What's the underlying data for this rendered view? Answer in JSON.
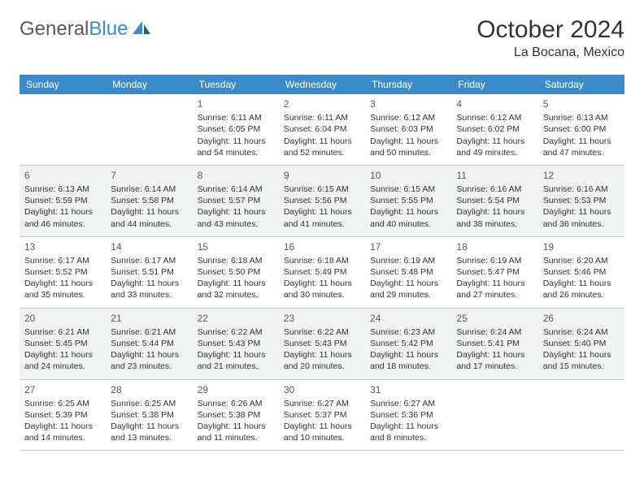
{
  "logo": {
    "word1": "General",
    "word2": "Blue"
  },
  "title": "October 2024",
  "location": "La Bocana, Mexico",
  "columns": [
    "Sunday",
    "Monday",
    "Tuesday",
    "Wednesday",
    "Thursday",
    "Friday",
    "Saturday"
  ],
  "header_bg": "#3b8bc9",
  "row_alt_bg": "#f1f2f2",
  "cells": [
    [
      null,
      null,
      {
        "day": "1",
        "sunrise": "Sunrise: 6:11 AM",
        "sunset": "Sunset: 6:05 PM",
        "daylight": "Daylight: 11 hours and 54 minutes."
      },
      {
        "day": "2",
        "sunrise": "Sunrise: 6:11 AM",
        "sunset": "Sunset: 6:04 PM",
        "daylight": "Daylight: 11 hours and 52 minutes."
      },
      {
        "day": "3",
        "sunrise": "Sunrise: 6:12 AM",
        "sunset": "Sunset: 6:03 PM",
        "daylight": "Daylight: 11 hours and 50 minutes."
      },
      {
        "day": "4",
        "sunrise": "Sunrise: 6:12 AM",
        "sunset": "Sunset: 6:02 PM",
        "daylight": "Daylight: 11 hours and 49 minutes."
      },
      {
        "day": "5",
        "sunrise": "Sunrise: 6:13 AM",
        "sunset": "Sunset: 6:00 PM",
        "daylight": "Daylight: 11 hours and 47 minutes."
      }
    ],
    [
      {
        "day": "6",
        "sunrise": "Sunrise: 6:13 AM",
        "sunset": "Sunset: 5:59 PM",
        "daylight": "Daylight: 11 hours and 46 minutes."
      },
      {
        "day": "7",
        "sunrise": "Sunrise: 6:14 AM",
        "sunset": "Sunset: 5:58 PM",
        "daylight": "Daylight: 11 hours and 44 minutes."
      },
      {
        "day": "8",
        "sunrise": "Sunrise: 6:14 AM",
        "sunset": "Sunset: 5:57 PM",
        "daylight": "Daylight: 11 hours and 43 minutes."
      },
      {
        "day": "9",
        "sunrise": "Sunrise: 6:15 AM",
        "sunset": "Sunset: 5:56 PM",
        "daylight": "Daylight: 11 hours and 41 minutes."
      },
      {
        "day": "10",
        "sunrise": "Sunrise: 6:15 AM",
        "sunset": "Sunset: 5:55 PM",
        "daylight": "Daylight: 11 hours and 40 minutes."
      },
      {
        "day": "11",
        "sunrise": "Sunrise: 6:16 AM",
        "sunset": "Sunset: 5:54 PM",
        "daylight": "Daylight: 11 hours and 38 minutes."
      },
      {
        "day": "12",
        "sunrise": "Sunrise: 6:16 AM",
        "sunset": "Sunset: 5:53 PM",
        "daylight": "Daylight: 11 hours and 36 minutes."
      }
    ],
    [
      {
        "day": "13",
        "sunrise": "Sunrise: 6:17 AM",
        "sunset": "Sunset: 5:52 PM",
        "daylight": "Daylight: 11 hours and 35 minutes."
      },
      {
        "day": "14",
        "sunrise": "Sunrise: 6:17 AM",
        "sunset": "Sunset: 5:51 PM",
        "daylight": "Daylight: 11 hours and 33 minutes."
      },
      {
        "day": "15",
        "sunrise": "Sunrise: 6:18 AM",
        "sunset": "Sunset: 5:50 PM",
        "daylight": "Daylight: 11 hours and 32 minutes."
      },
      {
        "day": "16",
        "sunrise": "Sunrise: 6:18 AM",
        "sunset": "Sunset: 5:49 PM",
        "daylight": "Daylight: 11 hours and 30 minutes."
      },
      {
        "day": "17",
        "sunrise": "Sunrise: 6:19 AM",
        "sunset": "Sunset: 5:48 PM",
        "daylight": "Daylight: 11 hours and 29 minutes."
      },
      {
        "day": "18",
        "sunrise": "Sunrise: 6:19 AM",
        "sunset": "Sunset: 5:47 PM",
        "daylight": "Daylight: 11 hours and 27 minutes."
      },
      {
        "day": "19",
        "sunrise": "Sunrise: 6:20 AM",
        "sunset": "Sunset: 5:46 PM",
        "daylight": "Daylight: 11 hours and 26 minutes."
      }
    ],
    [
      {
        "day": "20",
        "sunrise": "Sunrise: 6:21 AM",
        "sunset": "Sunset: 5:45 PM",
        "daylight": "Daylight: 11 hours and 24 minutes."
      },
      {
        "day": "21",
        "sunrise": "Sunrise: 6:21 AM",
        "sunset": "Sunset: 5:44 PM",
        "daylight": "Daylight: 11 hours and 23 minutes."
      },
      {
        "day": "22",
        "sunrise": "Sunrise: 6:22 AM",
        "sunset": "Sunset: 5:43 PM",
        "daylight": "Daylight: 11 hours and 21 minutes."
      },
      {
        "day": "23",
        "sunrise": "Sunrise: 6:22 AM",
        "sunset": "Sunset: 5:43 PM",
        "daylight": "Daylight: 11 hours and 20 minutes."
      },
      {
        "day": "24",
        "sunrise": "Sunrise: 6:23 AM",
        "sunset": "Sunset: 5:42 PM",
        "daylight": "Daylight: 11 hours and 18 minutes."
      },
      {
        "day": "25",
        "sunrise": "Sunrise: 6:24 AM",
        "sunset": "Sunset: 5:41 PM",
        "daylight": "Daylight: 11 hours and 17 minutes."
      },
      {
        "day": "26",
        "sunrise": "Sunrise: 6:24 AM",
        "sunset": "Sunset: 5:40 PM",
        "daylight": "Daylight: 11 hours and 15 minutes."
      }
    ],
    [
      {
        "day": "27",
        "sunrise": "Sunrise: 6:25 AM",
        "sunset": "Sunset: 5:39 PM",
        "daylight": "Daylight: 11 hours and 14 minutes."
      },
      {
        "day": "28",
        "sunrise": "Sunrise: 6:25 AM",
        "sunset": "Sunset: 5:38 PM",
        "daylight": "Daylight: 11 hours and 13 minutes."
      },
      {
        "day": "29",
        "sunrise": "Sunrise: 6:26 AM",
        "sunset": "Sunset: 5:38 PM",
        "daylight": "Daylight: 11 hours and 11 minutes."
      },
      {
        "day": "30",
        "sunrise": "Sunrise: 6:27 AM",
        "sunset": "Sunset: 5:37 PM",
        "daylight": "Daylight: 11 hours and 10 minutes."
      },
      {
        "day": "31",
        "sunrise": "Sunrise: 6:27 AM",
        "sunset": "Sunset: 5:36 PM",
        "daylight": "Daylight: 11 hours and 8 minutes."
      },
      null,
      null
    ]
  ]
}
